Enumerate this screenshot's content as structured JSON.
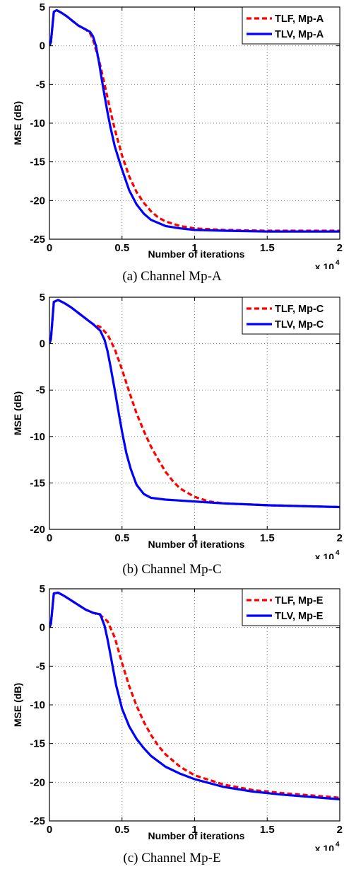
{
  "colors": {
    "tlf": "#ff0000",
    "tlv": "#0000ff",
    "grid": "#8a8a8a"
  },
  "chart_data": [
    {
      "type": "line",
      "caption": "(a) Channel Mp-A",
      "xlabel": "Number of iterations",
      "ylabel": "MSE (dB)",
      "x_multiplier": "x 10",
      "x_multiplier_exp": "4",
      "xlim": [
        0,
        2
      ],
      "ylim": [
        -25,
        5
      ],
      "xticks": [
        0,
        0.5,
        1,
        1.5,
        2
      ],
      "xtick_labels": [
        "0",
        "0.5",
        "1",
        "1.5",
        "2"
      ],
      "yticks": [
        5,
        0,
        -5,
        -10,
        -15,
        -20,
        -25
      ],
      "ytick_labels": [
        "5",
        "0",
        "-5",
        "-10",
        "-15",
        "-20",
        "-25"
      ],
      "grid": true,
      "legend_position": "top-right",
      "series": [
        {
          "name": "TLF, Mp-A",
          "style": "dashed",
          "color": "#ff0000",
          "x": [
            0,
            0.01,
            0.03,
            0.05,
            0.08,
            0.12,
            0.16,
            0.2,
            0.25,
            0.28,
            0.3,
            0.32,
            0.35,
            0.38,
            0.4,
            0.42,
            0.45,
            0.48,
            0.5,
            0.55,
            0.6,
            0.65,
            0.7,
            0.75,
            0.8,
            0.9,
            1.0,
            1.2,
            1.5,
            2.0
          ],
          "y": [
            0,
            0.5,
            4.4,
            4.6,
            4.3,
            3.8,
            3.2,
            2.6,
            2.1,
            1.6,
            0.8,
            -0.5,
            -2.5,
            -5.0,
            -6.7,
            -8.4,
            -10.8,
            -12.8,
            -14.2,
            -16.9,
            -18.9,
            -20.3,
            -21.4,
            -22.2,
            -22.7,
            -23.3,
            -23.6,
            -23.8,
            -23.9,
            -23.9
          ]
        },
        {
          "name": "TLV, Mp-A",
          "style": "solid",
          "color": "#0000ff",
          "x": [
            0,
            0.01,
            0.03,
            0.05,
            0.08,
            0.12,
            0.16,
            0.2,
            0.25,
            0.28,
            0.3,
            0.32,
            0.34,
            0.36,
            0.38,
            0.4,
            0.42,
            0.45,
            0.48,
            0.5,
            0.55,
            0.6,
            0.65,
            0.7,
            0.8,
            0.9,
            1.0,
            1.2,
            1.5,
            2.0
          ],
          "y": [
            0,
            0.5,
            4.4,
            4.6,
            4.3,
            3.8,
            3.2,
            2.6,
            2.1,
            1.8,
            1.2,
            0.0,
            -2.0,
            -4.3,
            -6.5,
            -8.6,
            -10.5,
            -13.0,
            -14.8,
            -16.0,
            -18.7,
            -20.5,
            -21.7,
            -22.5,
            -23.3,
            -23.6,
            -23.8,
            -23.9,
            -24.0,
            -24.0
          ]
        }
      ]
    },
    {
      "type": "line",
      "caption": "(b) Channel Mp-C",
      "xlabel": "Number of iterations",
      "ylabel": "MSE (dB)",
      "x_multiplier": "x 10",
      "x_multiplier_exp": "4",
      "xlim": [
        0,
        2
      ],
      "ylim": [
        -20,
        5
      ],
      "xticks": [
        0,
        0.5,
        1,
        1.5,
        2
      ],
      "xtick_labels": [
        "0",
        "0.5",
        "1",
        "1.5",
        "2"
      ],
      "yticks": [
        5,
        0,
        -5,
        -10,
        -15,
        -20
      ],
      "ytick_labels": [
        "5",
        "0",
        "-5",
        "-10",
        "-15",
        "-20"
      ],
      "grid": true,
      "legend_position": "top-right",
      "series": [
        {
          "name": "TLF, Mp-C",
          "style": "dashed",
          "color": "#ff0000",
          "x": [
            0,
            0.01,
            0.03,
            0.06,
            0.1,
            0.15,
            0.2,
            0.25,
            0.3,
            0.35,
            0.4,
            0.45,
            0.5,
            0.55,
            0.6,
            0.65,
            0.7,
            0.75,
            0.8,
            0.85,
            0.9,
            1.0,
            1.1,
            1.2,
            1.5,
            2.0
          ],
          "y": [
            0,
            0.5,
            4.5,
            4.7,
            4.4,
            3.9,
            3.3,
            2.7,
            2.1,
            1.8,
            1.0,
            -0.6,
            -2.8,
            -5.2,
            -7.5,
            -9.4,
            -11.1,
            -12.5,
            -13.8,
            -14.8,
            -15.6,
            -16.5,
            -17.0,
            -17.2,
            -17.4,
            -17.6
          ]
        },
        {
          "name": "TLV, Mp-C",
          "style": "solid",
          "color": "#0000ff",
          "x": [
            0,
            0.01,
            0.03,
            0.06,
            0.1,
            0.15,
            0.2,
            0.25,
            0.3,
            0.35,
            0.38,
            0.4,
            0.42,
            0.45,
            0.48,
            0.5,
            0.53,
            0.56,
            0.6,
            0.65,
            0.7,
            0.8,
            1.0,
            1.2,
            1.5,
            2.0
          ],
          "y": [
            0,
            0.5,
            4.5,
            4.7,
            4.4,
            3.9,
            3.3,
            2.7,
            2.1,
            1.4,
            0.4,
            -0.8,
            -2.4,
            -5.0,
            -7.7,
            -9.5,
            -11.8,
            -13.5,
            -15.2,
            -16.2,
            -16.6,
            -16.8,
            -17.0,
            -17.2,
            -17.4,
            -17.6
          ]
        }
      ]
    },
    {
      "type": "line",
      "caption": "(c) Channel Mp-E",
      "xlabel": "Number of iterations",
      "ylabel": "MSE (dB)",
      "x_multiplier": "x 10",
      "x_multiplier_exp": "4",
      "xlim": [
        0,
        2
      ],
      "ylim": [
        -25,
        5
      ],
      "xticks": [
        0,
        0.5,
        1,
        1.5,
        2
      ],
      "xtick_labels": [
        "0",
        "0.5",
        "1",
        "1.5",
        "2"
      ],
      "yticks": [
        5,
        0,
        -5,
        -10,
        -15,
        -20,
        -25
      ],
      "ytick_labels": [
        "5",
        "0",
        "-5",
        "-10",
        "-15",
        "-20",
        "-25"
      ],
      "grid": true,
      "legend_position": "top-right",
      "series": [
        {
          "name": "TLF, Mp-E",
          "style": "dashed",
          "color": "#ff0000",
          "x": [
            0,
            0.01,
            0.03,
            0.06,
            0.1,
            0.15,
            0.2,
            0.25,
            0.3,
            0.35,
            0.4,
            0.45,
            0.5,
            0.55,
            0.6,
            0.65,
            0.7,
            0.75,
            0.8,
            0.9,
            1.0,
            1.2,
            1.4,
            1.6,
            1.8,
            2.0
          ],
          "y": [
            0,
            0.5,
            4.4,
            4.5,
            4.1,
            3.5,
            2.9,
            2.3,
            1.9,
            1.6,
            0.8,
            -1.3,
            -4.6,
            -7.6,
            -10.1,
            -12.2,
            -13.9,
            -15.3,
            -16.4,
            -18.0,
            -19.1,
            -20.3,
            -21.0,
            -21.4,
            -21.7,
            -22.0
          ]
        },
        {
          "name": "TLV, Mp-E",
          "style": "solid",
          "color": "#0000ff",
          "x": [
            0,
            0.01,
            0.03,
            0.06,
            0.1,
            0.15,
            0.2,
            0.25,
            0.3,
            0.35,
            0.38,
            0.4,
            0.43,
            0.46,
            0.5,
            0.55,
            0.6,
            0.65,
            0.7,
            0.8,
            0.9,
            1.0,
            1.2,
            1.4,
            1.6,
            2.0
          ],
          "y": [
            0,
            0.5,
            4.4,
            4.5,
            4.1,
            3.5,
            2.9,
            2.3,
            1.9,
            1.7,
            0.2,
            -1.5,
            -4.5,
            -7.5,
            -10.5,
            -12.8,
            -14.4,
            -15.6,
            -16.6,
            -18.0,
            -18.9,
            -19.6,
            -20.6,
            -21.2,
            -21.6,
            -22.2
          ]
        }
      ]
    }
  ]
}
